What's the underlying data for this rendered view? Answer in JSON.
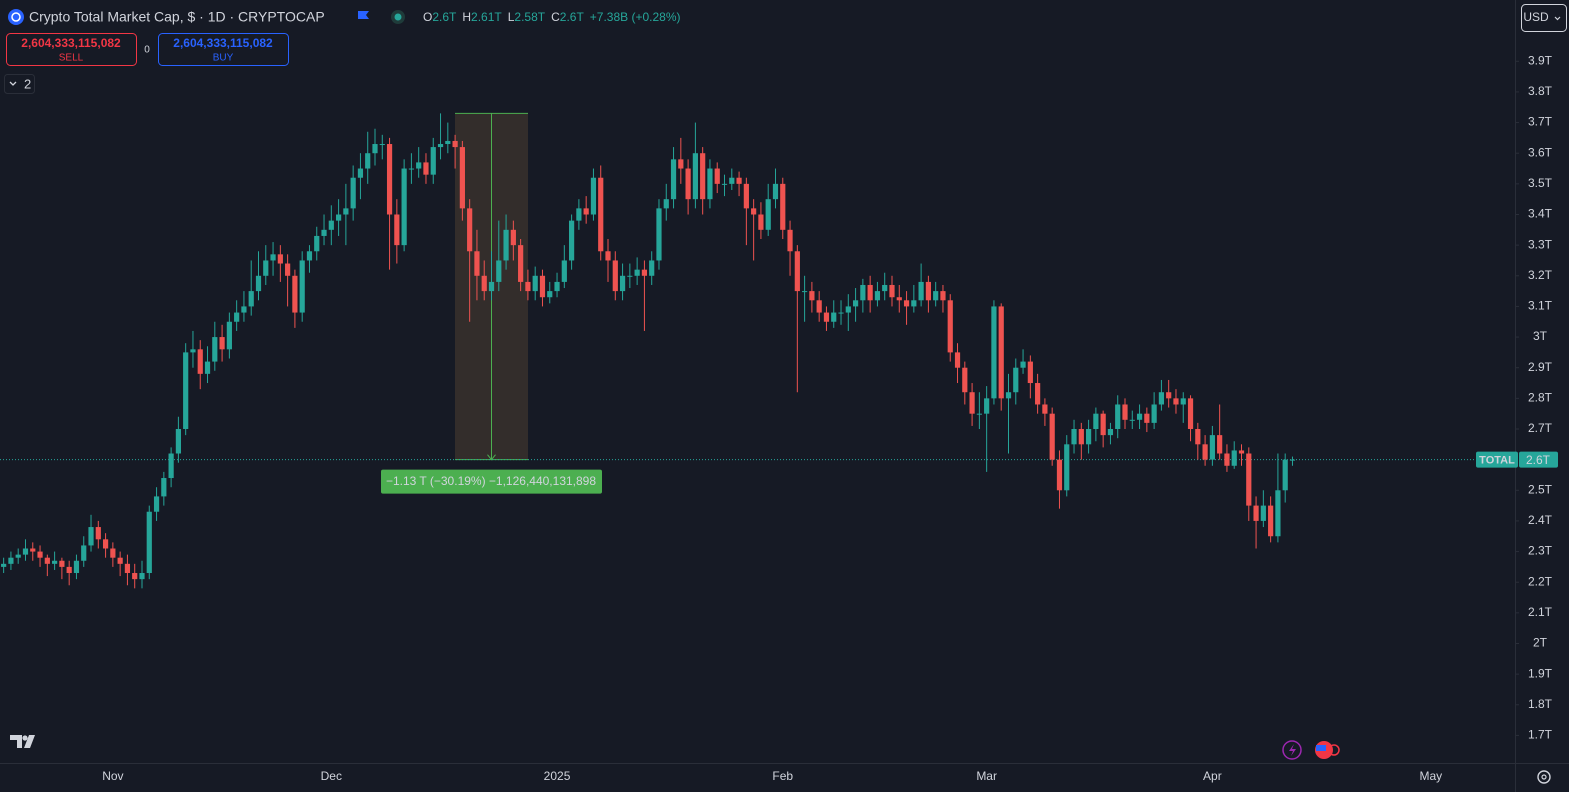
{
  "header": {
    "title": "Crypto Total Market Cap, $ · 1D · CRYPTOCAP",
    "ohlc": [
      {
        "key": "O",
        "value": "2.6T"
      },
      {
        "key": "H",
        "value": "2.61T"
      },
      {
        "key": "L",
        "value": "2.58T"
      },
      {
        "key": "C",
        "value": "2.6T"
      }
    ],
    "change": "+7.38B (+0.28%)",
    "sell": {
      "price": "2,604,333,115,082",
      "label": "SELL"
    },
    "spread": "0",
    "buy": {
      "price": "2,604,333,115,082",
      "label": "BUY"
    },
    "indicators_count": "2",
    "currency": "USD"
  },
  "chart_data": {
    "type": "candlestick",
    "up_color": "#26a69a",
    "down_color": "#ef5350",
    "categories": [
      null,
      null,
      null,
      null,
      null,
      null,
      null,
      null,
      null,
      null,
      null,
      null,
      null,
      null,
      null,
      "Nov",
      null,
      null,
      null,
      null,
      null,
      null,
      null,
      null,
      null,
      null,
      null,
      null,
      null,
      null,
      null,
      null,
      null,
      null,
      null,
      null,
      null,
      null,
      null,
      null,
      null,
      null,
      null,
      null,
      null,
      "Dec",
      null,
      null,
      null,
      null,
      null,
      null,
      null,
      null,
      null,
      null,
      null,
      null,
      null,
      null,
      null,
      null,
      null,
      null,
      null,
      null,
      null,
      null,
      null,
      null,
      null,
      null,
      null,
      null,
      null,
      null,
      "2025",
      null,
      null,
      null,
      null,
      null,
      null,
      null,
      null,
      null,
      null,
      null,
      null,
      null,
      null,
      null,
      null,
      null,
      null,
      null,
      null,
      null,
      null,
      null,
      null,
      null,
      null,
      null,
      null,
      null,
      null,
      "Feb",
      null,
      null,
      null,
      null,
      null,
      null,
      null,
      null,
      null,
      null,
      null,
      null,
      null,
      null,
      null,
      null,
      null,
      null,
      null,
      null,
      null,
      null,
      null,
      null,
      null,
      null,
      null,
      "Mar",
      null,
      null,
      null,
      null,
      null,
      null,
      null,
      null,
      null,
      null,
      null,
      null,
      null,
      null,
      null,
      null,
      null,
      null,
      null,
      null,
      null,
      null,
      null,
      null,
      null,
      null,
      null,
      null,
      null,
      null,
      "Apr",
      null,
      null,
      null,
      null,
      null,
      null,
      null,
      null,
      null,
      null,
      null,
      null,
      null,
      null,
      null,
      null,
      null,
      null,
      null,
      null,
      null,
      null,
      null,
      null,
      null,
      null,
      null,
      null,
      null,
      "May",
      null,
      null,
      null,
      null,
      null,
      null,
      null,
      null,
      null
    ],
    "open": [
      2.25,
      2.26,
      2.28,
      2.29,
      2.31,
      2.3,
      2.28,
      2.26,
      2.27,
      2.25,
      2.23,
      2.27,
      2.32,
      2.38,
      2.34,
      2.31,
      2.28,
      2.26,
      2.23,
      2.21,
      2.23,
      2.43,
      2.48,
      2.54,
      2.62,
      2.7,
      2.95,
      2.96,
      2.88,
      2.92,
      3.0,
      2.96,
      3.05,
      3.08,
      3.1,
      3.15,
      3.2,
      3.25,
      3.27,
      3.24,
      3.2,
      3.08,
      3.25,
      3.28,
      3.33,
      3.35,
      3.38,
      3.4,
      3.42,
      3.52,
      3.55,
      3.6,
      3.63,
      3.63,
      3.4,
      3.3,
      3.55,
      3.55,
      3.57,
      3.53,
      3.62,
      3.63,
      3.64,
      3.62,
      3.42,
      3.28,
      3.2,
      3.15,
      3.18,
      3.25,
      3.35,
      3.3,
      3.18,
      3.15,
      3.2,
      3.13,
      3.15,
      3.18,
      3.25,
      3.38,
      3.42,
      3.4,
      3.52,
      3.28,
      3.25,
      3.15,
      3.2,
      3.2,
      3.22,
      3.2,
      3.25,
      3.42,
      3.45,
      3.58,
      3.55,
      3.45,
      3.6,
      3.45,
      3.55,
      3.5,
      3.5,
      3.52,
      3.5,
      3.42,
      3.4,
      3.35,
      3.45,
      3.5,
      3.35,
      3.28,
      3.15,
      3.15,
      3.12,
      3.08,
      3.05,
      3.08,
      3.08,
      3.1,
      3.12,
      3.17,
      3.12,
      3.15,
      3.17,
      3.13,
      3.12,
      3.1,
      3.12,
      3.18,
      3.12,
      3.15,
      3.12,
      2.95,
      2.9,
      2.82,
      2.75,
      2.75,
      2.8,
      3.1,
      2.8,
      2.82,
      2.9,
      2.92,
      2.85,
      2.78,
      2.75,
      2.6,
      2.5,
      2.65,
      2.7,
      2.65,
      2.7,
      2.75,
      2.68,
      2.7,
      2.78,
      2.73,
      2.73,
      2.75,
      2.72,
      2.78,
      2.82,
      2.8,
      2.78,
      2.8,
      2.7,
      2.65,
      2.6,
      2.68,
      2.62,
      2.58,
      2.63,
      2.62,
      2.45,
      2.4,
      2.45,
      2.35,
      2.5,
      2.6,
      null,
      null,
      null,
      null,
      null,
      null,
      null,
      null,
      null,
      null,
      null,
      null,
      null,
      null,
      null,
      null,
      null,
      null,
      null,
      null,
      null,
      null,
      null,
      null,
      null,
      null,
      null,
      null
    ],
    "high": [
      2.28,
      2.3,
      2.31,
      2.34,
      2.33,
      2.32,
      2.29,
      2.3,
      2.28,
      2.27,
      2.29,
      2.35,
      2.42,
      2.4,
      2.36,
      2.33,
      2.3,
      2.29,
      2.26,
      2.27,
      2.45,
      2.51,
      2.56,
      2.64,
      2.74,
      2.98,
      3.02,
      2.99,
      2.97,
      3.05,
      3.04,
      3.08,
      3.12,
      3.15,
      3.25,
      3.28,
      3.3,
      3.31,
      3.3,
      3.27,
      3.22,
      3.28,
      3.3,
      3.36,
      3.4,
      3.43,
      3.45,
      3.5,
      3.56,
      3.6,
      3.67,
      3.68,
      3.66,
      3.65,
      3.45,
      3.58,
      3.6,
      3.62,
      3.6,
      3.65,
      3.73,
      3.7,
      3.66,
      3.64,
      3.45,
      3.35,
      3.25,
      3.28,
      3.38,
      3.4,
      3.38,
      3.32,
      3.22,
      3.23,
      3.22,
      3.18,
      3.21,
      3.3,
      3.4,
      3.45,
      3.46,
      3.55,
      3.56,
      3.32,
      3.28,
      3.24,
      3.24,
      3.26,
      3.25,
      3.28,
      3.45,
      3.5,
      3.62,
      3.65,
      3.58,
      3.7,
      3.62,
      3.58,
      3.57,
      3.53,
      3.55,
      3.54,
      3.52,
      3.45,
      3.44,
      3.5,
      3.55,
      3.52,
      3.38,
      3.3,
      3.2,
      3.18,
      3.15,
      3.1,
      3.12,
      3.12,
      3.14,
      3.16,
      3.19,
      3.2,
      3.18,
      3.21,
      3.2,
      3.17,
      3.15,
      3.17,
      3.24,
      3.2,
      3.18,
      3.17,
      3.14,
      2.98,
      2.92,
      2.85,
      2.82,
      2.84,
      3.12,
      3.11,
      2.88,
      2.93,
      2.96,
      2.94,
      2.88,
      2.8,
      2.77,
      2.63,
      2.68,
      2.73,
      2.72,
      2.73,
      2.77,
      2.76,
      2.72,
      2.81,
      2.8,
      2.76,
      2.78,
      2.77,
      2.82,
      2.86,
      2.86,
      2.83,
      2.82,
      2.81,
      2.72,
      2.68,
      2.71,
      2.78,
      2.65,
      2.66,
      2.65,
      2.64,
      2.48,
      2.5,
      2.48,
      2.62,
      2.62,
      2.61,
      null,
      null,
      null,
      null,
      null,
      null,
      null,
      null,
      null,
      null,
      null,
      null,
      null,
      null,
      null,
      null,
      null,
      null,
      null,
      null,
      null,
      null,
      null,
      null,
      null,
      null,
      null,
      null
    ],
    "low": [
      2.23,
      2.24,
      2.26,
      2.27,
      2.27,
      2.25,
      2.22,
      2.24,
      2.21,
      2.19,
      2.21,
      2.25,
      2.3,
      2.31,
      2.28,
      2.25,
      2.22,
      2.19,
      2.18,
      2.18,
      2.21,
      2.4,
      2.45,
      2.51,
      2.59,
      2.68,
      2.9,
      2.83,
      2.85,
      2.89,
      2.92,
      2.93,
      3.02,
      3.05,
      3.07,
      3.12,
      3.17,
      3.2,
      3.18,
      3.1,
      3.03,
      3.05,
      3.21,
      3.25,
      3.3,
      3.3,
      3.33,
      3.3,
      3.38,
      3.45,
      3.5,
      3.56,
      3.58,
      3.22,
      3.24,
      3.28,
      3.5,
      3.52,
      3.5,
      3.5,
      3.58,
      3.6,
      3.55,
      3.38,
      3.05,
      3.12,
      3.12,
      3.12,
      3.15,
      3.22,
      3.25,
      3.15,
      3.12,
      3.12,
      3.1,
      3.11,
      3.13,
      3.16,
      3.22,
      3.35,
      3.37,
      3.38,
      3.25,
      3.18,
      3.12,
      3.12,
      3.16,
      3.17,
      3.02,
      3.17,
      3.22,
      3.38,
      3.42,
      3.5,
      3.4,
      3.42,
      3.4,
      3.42,
      3.47,
      3.46,
      3.48,
      3.46,
      3.3,
      3.25,
      3.32,
      3.33,
      3.42,
      3.32,
      3.2,
      2.82,
      3.05,
      3.08,
      3.05,
      3.02,
      3.03,
      3.04,
      3.02,
      3.05,
      3.08,
      3.08,
      3.1,
      3.12,
      3.1,
      3.08,
      3.04,
      3.08,
      3.1,
      3.08,
      3.1,
      3.08,
      2.92,
      2.85,
      2.78,
      2.71,
      2.7,
      2.56,
      2.78,
      2.76,
      2.62,
      2.78,
      2.88,
      2.8,
      2.75,
      2.71,
      2.58,
      2.44,
      2.48,
      2.62,
      2.6,
      2.62,
      2.66,
      2.64,
      2.65,
      2.67,
      2.7,
      2.7,
      2.7,
      2.69,
      2.7,
      2.76,
      2.77,
      2.75,
      2.72,
      2.66,
      2.6,
      2.58,
      2.58,
      2.6,
      2.56,
      2.57,
      2.58,
      2.4,
      2.31,
      2.38,
      2.33,
      2.33,
      2.46,
      2.58,
      null,
      null,
      null,
      null,
      null,
      null,
      null,
      null,
      null,
      null,
      null,
      null,
      null,
      null,
      null,
      null,
      null,
      null,
      null,
      null,
      null,
      null,
      null,
      null,
      null,
      null,
      null,
      null
    ],
    "close": [
      2.26,
      2.28,
      2.29,
      2.31,
      2.3,
      2.28,
      2.26,
      2.27,
      2.25,
      2.23,
      2.27,
      2.32,
      2.38,
      2.34,
      2.31,
      2.28,
      2.26,
      2.23,
      2.21,
      2.23,
      2.43,
      2.48,
      2.54,
      2.62,
      2.7,
      2.95,
      2.96,
      2.88,
      2.92,
      3.0,
      2.96,
      3.05,
      3.08,
      3.1,
      3.15,
      3.2,
      3.25,
      3.27,
      3.24,
      3.2,
      3.08,
      3.25,
      3.28,
      3.33,
      3.35,
      3.38,
      3.4,
      3.42,
      3.52,
      3.55,
      3.6,
      3.63,
      3.63,
      3.4,
      3.3,
      3.55,
      3.55,
      3.57,
      3.53,
      3.62,
      3.63,
      3.64,
      3.62,
      3.42,
      3.28,
      3.2,
      3.15,
      3.18,
      3.25,
      3.35,
      3.3,
      3.18,
      3.15,
      3.2,
      3.13,
      3.15,
      3.18,
      3.25,
      3.38,
      3.42,
      3.4,
      3.52,
      3.28,
      3.25,
      3.15,
      3.2,
      3.2,
      3.22,
      3.2,
      3.25,
      3.42,
      3.45,
      3.58,
      3.55,
      3.45,
      3.6,
      3.45,
      3.55,
      3.5,
      3.5,
      3.52,
      3.5,
      3.42,
      3.4,
      3.35,
      3.45,
      3.5,
      3.35,
      3.28,
      3.15,
      3.15,
      3.12,
      3.08,
      3.05,
      3.08,
      3.08,
      3.1,
      3.12,
      3.17,
      3.12,
      3.15,
      3.17,
      3.13,
      3.12,
      3.1,
      3.12,
      3.18,
      3.12,
      3.15,
      3.12,
      2.95,
      2.9,
      2.82,
      2.75,
      2.75,
      2.8,
      3.1,
      2.8,
      2.82,
      2.9,
      2.92,
      2.85,
      2.78,
      2.75,
      2.6,
      2.5,
      2.65,
      2.7,
      2.65,
      2.7,
      2.75,
      2.68,
      2.7,
      2.78,
      2.73,
      2.73,
      2.75,
      2.72,
      2.78,
      2.82,
      2.8,
      2.78,
      2.8,
      2.7,
      2.65,
      2.6,
      2.68,
      2.62,
      2.58,
      2.63,
      2.62,
      2.45,
      2.4,
      2.45,
      2.35,
      2.5,
      2.6,
      2.6,
      null,
      null,
      null,
      null,
      null,
      null,
      null,
      null,
      null,
      null,
      null,
      null,
      null,
      null,
      null,
      null,
      null,
      null,
      null,
      null,
      null,
      null,
      null,
      null,
      null,
      null,
      null,
      null
    ],
    "ylim": [
      1.61,
      4.1
    ],
    "yticks": [
      {
        "value": 1.7,
        "label": "1.7T"
      },
      {
        "value": 1.8,
        "label": "1.8T"
      },
      {
        "value": 1.9,
        "label": "1.9T"
      },
      {
        "value": 2,
        "label": "2T"
      },
      {
        "value": 2.1,
        "label": "2.1T"
      },
      {
        "value": 2.2,
        "label": "2.2T"
      },
      {
        "value": 2.3,
        "label": "2.3T"
      },
      {
        "value": 2.4,
        "label": "2.4T"
      },
      {
        "value": 2.5,
        "label": "2.5T"
      },
      {
        "value": 2.7,
        "label": "2.7T"
      },
      {
        "value": 2.8,
        "label": "2.8T"
      },
      {
        "value": 2.9,
        "label": "2.9T"
      },
      {
        "value": 3,
        "label": "3T"
      },
      {
        "value": 3.1,
        "label": "3.1T"
      },
      {
        "value": 3.2,
        "label": "3.2T"
      },
      {
        "value": 3.3,
        "label": "3.3T"
      },
      {
        "value": 3.4,
        "label": "3.4T"
      },
      {
        "value": 3.5,
        "label": "3.5T"
      },
      {
        "value": 3.6,
        "label": "3.6T"
      },
      {
        "value": 3.7,
        "label": "3.7T"
      },
      {
        "value": 3.8,
        "label": "3.8T"
      },
      {
        "value": 3.9,
        "label": "3.9T"
      }
    ],
    "last_price": {
      "value": 2.6,
      "label": "2.6T",
      "name": "TOTAL"
    },
    "measure": {
      "start": 3.73,
      "end": 2.6,
      "label": "−1.13 T (−30.19%) −1,126,440,131,898"
    }
  }
}
